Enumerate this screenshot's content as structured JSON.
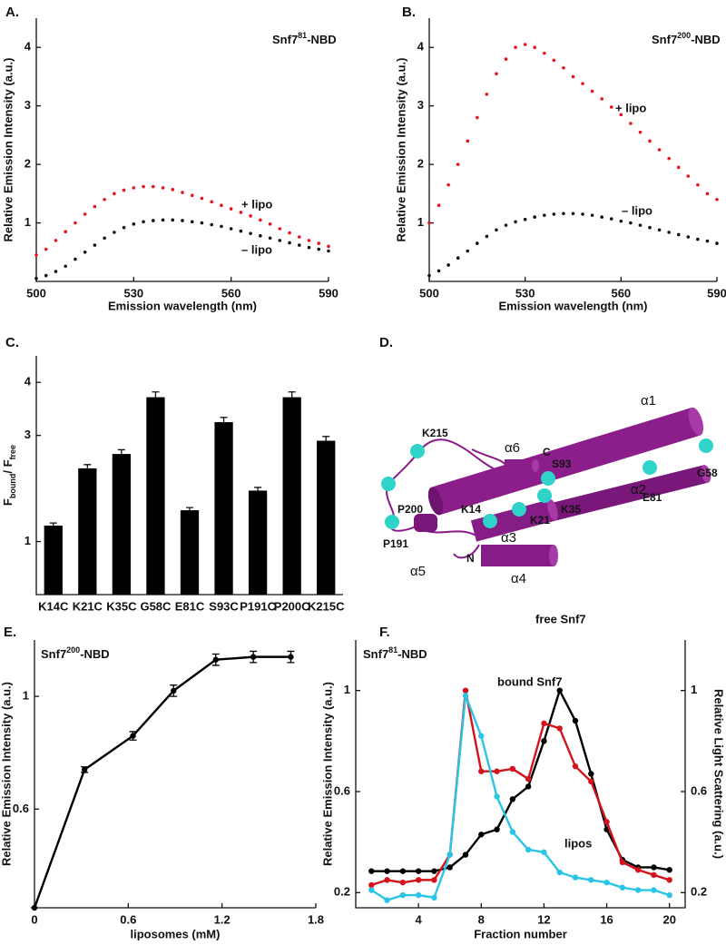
{
  "chart_data": [
    {
      "type": "scatter",
      "panel_label": "A.",
      "title": [
        "Snf7",
        "81",
        "-NBD"
      ],
      "x_label": "Emission wavelength (nm)",
      "y_label": "Relative Emission Intensity  (a.u.)",
      "x": [
        500,
        503,
        506,
        509,
        512,
        515,
        518,
        521,
        524,
        527,
        530,
        533,
        536,
        539,
        542,
        545,
        548,
        551,
        554,
        557,
        560,
        563,
        566,
        569,
        572,
        575,
        578,
        581,
        584,
        587,
        590
      ],
      "series": [
        {
          "name": "+ lipo",
          "color": "#e8141b",
          "values": [
            0.45,
            0.55,
            0.7,
            0.85,
            1.0,
            1.15,
            1.28,
            1.4,
            1.5,
            1.56,
            1.6,
            1.62,
            1.62,
            1.6,
            1.57,
            1.52,
            1.47,
            1.42,
            1.36,
            1.3,
            1.24,
            1.18,
            1.12,
            1.05,
            0.98,
            0.9,
            0.83,
            0.76,
            0.7,
            0.65,
            0.6
          ]
        },
        {
          "name": "– lipo",
          "color": "#111111",
          "values": [
            0.05,
            0.1,
            0.17,
            0.26,
            0.38,
            0.5,
            0.62,
            0.74,
            0.84,
            0.92,
            0.98,
            1.02,
            1.04,
            1.05,
            1.05,
            1.04,
            1.02,
            1.0,
            0.97,
            0.94,
            0.9,
            0.86,
            0.82,
            0.78,
            0.74,
            0.7,
            0.66,
            0.62,
            0.58,
            0.55,
            0.52
          ]
        }
      ],
      "xlim": [
        500,
        590
      ],
      "ylim": [
        0,
        4.5
      ],
      "xticks": [
        500,
        530,
        560,
        590
      ],
      "yticks": [
        1,
        2,
        3,
        4
      ]
    },
    {
      "type": "scatter",
      "panel_label": "B.",
      "title": [
        "Snf7",
        "200",
        "-NBD"
      ],
      "x_label": "Emission wavelength (nm)",
      "y_label": "Relative Emission Intensity  (a.u.)",
      "x": [
        500,
        503,
        506,
        509,
        512,
        515,
        518,
        521,
        524,
        527,
        530,
        533,
        536,
        539,
        542,
        545,
        548,
        551,
        554,
        557,
        560,
        563,
        566,
        569,
        572,
        575,
        578,
        581,
        584,
        587,
        590
      ],
      "series": [
        {
          "name": "+ lipo",
          "color": "#e8141b",
          "values": [
            1.0,
            1.3,
            1.65,
            2.0,
            2.4,
            2.8,
            3.2,
            3.55,
            3.8,
            4.0,
            4.05,
            4.0,
            3.9,
            3.78,
            3.65,
            3.5,
            3.38,
            3.25,
            3.12,
            2.98,
            2.85,
            2.7,
            2.55,
            2.4,
            2.25,
            2.1,
            1.95,
            1.8,
            1.65,
            1.5,
            1.4
          ]
        },
        {
          "name": "– lipo",
          "color": "#111111",
          "values": [
            0.1,
            0.18,
            0.28,
            0.4,
            0.52,
            0.65,
            0.77,
            0.88,
            0.96,
            1.02,
            1.06,
            1.1,
            1.13,
            1.15,
            1.16,
            1.16,
            1.15,
            1.13,
            1.1,
            1.07,
            1.03,
            1.0,
            0.96,
            0.92,
            0.88,
            0.84,
            0.8,
            0.76,
            0.72,
            0.69,
            0.65
          ]
        }
      ],
      "xlim": [
        500,
        590
      ],
      "ylim": [
        0,
        4.5
      ],
      "xticks": [
        500,
        530,
        560,
        590
      ],
      "yticks": [
        1,
        2,
        3,
        4
      ]
    },
    {
      "type": "bar",
      "panel_label": "C.",
      "y_label": [
        "F",
        "bound",
        "/ F",
        "free"
      ],
      "categories": [
        "K14C",
        "K21C",
        "K35C",
        "G58C",
        "E81C",
        "S93C",
        "P191C",
        "P200C",
        "K215C"
      ],
      "values": [
        1.3,
        2.38,
        2.65,
        3.72,
        1.59,
        3.25,
        1.96,
        3.72,
        2.9
      ],
      "errors": [
        0.05,
        0.07,
        0.08,
        0.1,
        0.05,
        0.09,
        0.06,
        0.1,
        0.08
      ],
      "color": "#000000",
      "ylim": [
        0,
        4.5
      ],
      "yticks": [
        1,
        3,
        4
      ]
    },
    {
      "type": "line",
      "panel_label": "E.",
      "title": [
        "Snf7",
        "200",
        "-NBD"
      ],
      "x_label": "liposomes (mM)",
      "y_label": "Relative Emission Intensity  (a.u.)",
      "x": [
        0,
        0.32,
        0.63,
        0.89,
        1.16,
        1.4,
        1.64
      ],
      "series": [
        {
          "color": "#000000",
          "values": [
            0.25,
            0.74,
            0.86,
            1.02,
            1.13,
            1.14,
            1.14
          ],
          "errors": [
            0,
            0.01,
            0.015,
            0.02,
            0.02,
            0.02,
            0.02
          ]
        }
      ],
      "xlim": [
        0,
        1.8
      ],
      "ylim": [
        0.25,
        1.2
      ],
      "xticks": [
        0,
        0.6,
        1.2,
        1.8
      ],
      "yticks": [
        0.6,
        1
      ]
    },
    {
      "type": "line",
      "panel_label": "F.",
      "title": [
        "Snf7",
        "81",
        "-NBD"
      ],
      "x_label": "Fraction number",
      "y_label": "Relative Emission Intensity  (a.u.)",
      "y2_label": "Relative Light Scattering  (a.u.)",
      "x": [
        1,
        2,
        3,
        4,
        5,
        6,
        7,
        8,
        9,
        10,
        11,
        12,
        13,
        14,
        15,
        16,
        17,
        18,
        19,
        20
      ],
      "series": [
        {
          "name": "free Snf7",
          "color": "#000000",
          "values": [
            0.285,
            0.285,
            0.285,
            0.285,
            0.285,
            0.3,
            0.35,
            0.43,
            0.45,
            0.57,
            0.62,
            0.8,
            1.0,
            0.88,
            0.67,
            0.45,
            0.33,
            0.3,
            0.3,
            0.29
          ]
        },
        {
          "name": "bound Snf7",
          "color": "#d4141c",
          "values": [
            0.23,
            0.25,
            0.24,
            0.25,
            0.25,
            0.35,
            1.0,
            0.68,
            0.68,
            0.69,
            0.65,
            0.87,
            0.85,
            0.7,
            0.64,
            0.48,
            0.32,
            0.29,
            0.27,
            0.25
          ]
        },
        {
          "name": "lipos",
          "color": "#29c5e6",
          "axis": "y2",
          "values": [
            0.21,
            0.17,
            0.19,
            0.19,
            0.18,
            0.35,
            0.98,
            0.82,
            0.58,
            0.44,
            0.37,
            0.36,
            0.28,
            0.26,
            0.25,
            0.24,
            0.22,
            0.21,
            0.21,
            0.19
          ]
        }
      ],
      "xlim": [
        0,
        21
      ],
      "ylim": [
        0.14,
        1.2
      ],
      "xticks": [
        4,
        8,
        12,
        16,
        20
      ],
      "yticks": [
        0.2,
        0.6,
        1
      ],
      "y2lim": [
        0.14,
        1.2
      ],
      "y2ticks": [
        0.2,
        0.6,
        1
      ]
    }
  ],
  "diagram": {
    "panel_label": "D.",
    "helices": [
      "α1",
      "α2",
      "α3",
      "α4",
      "α5",
      "α6"
    ],
    "termini": [
      "N",
      "C"
    ],
    "residues": [
      "K215",
      "P200",
      "P191",
      "S93",
      "K14",
      "K21",
      "K35",
      "E81",
      "G58"
    ]
  }
}
